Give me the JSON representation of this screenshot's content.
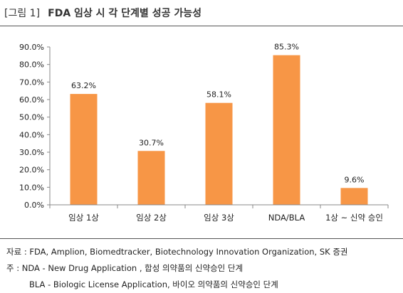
{
  "header": {
    "figure_tag": "[그림 1]",
    "title": "FDA 임상 시 각 단계별 성공 가능성"
  },
  "chart_data": {
    "type": "bar",
    "categories": [
      "임상 1상",
      "임상 2상",
      "임상 3상",
      "NDA/BLA",
      "1상 ~ 신약 승인"
    ],
    "values": [
      63.2,
      30.7,
      58.1,
      85.3,
      9.6
    ],
    "value_labels": [
      "63.2%",
      "30.7%",
      "58.1%",
      "85.3%",
      "9.6%"
    ],
    "ylim": [
      0,
      90
    ],
    "yticks": [
      0,
      10,
      20,
      30,
      40,
      50,
      60,
      70,
      80,
      90
    ],
    "ytick_labels": [
      "0.0%",
      "10.0%",
      "20.0%",
      "30.0%",
      "40.0%",
      "50.0%",
      "60.0%",
      "70.0%",
      "80.0%",
      "90.0%"
    ],
    "bar_color": "#F79646",
    "grid": false,
    "legend": "none"
  },
  "notes": {
    "source": "자료 : FDA, Amplion, Biomedtracker, Biotechnology Innovation Organization, SK 증권",
    "note1": "주 : NDA - New Drug Application , 합성 의약품의 신약승인 단계",
    "note2": "BLA - Biologic License Application, 바이오 의약품의 신약승인 단계"
  }
}
